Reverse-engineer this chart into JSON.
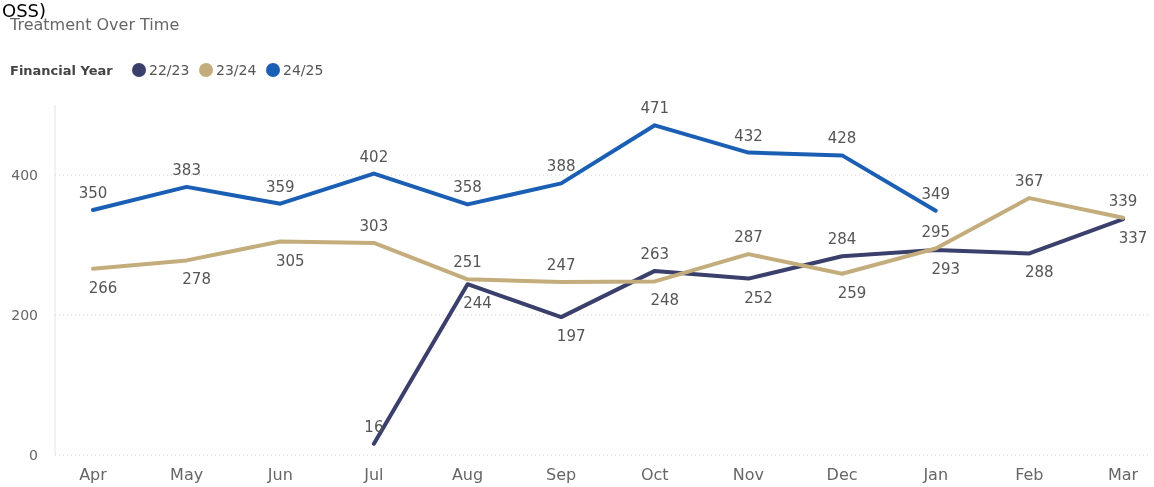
{
  "chart_data": {
    "type": "line",
    "title": "Treatment Over Time",
    "annotations": [
      "OSS)"
    ],
    "legend_title": "Financial Year",
    "categories": [
      "Apr",
      "May",
      "Jun",
      "Jul",
      "Aug",
      "Sep",
      "Oct",
      "Nov",
      "Dec",
      "Jan",
      "Feb",
      "Mar"
    ],
    "series": [
      {
        "name": "22/23",
        "color": "#3b3f6b",
        "values": [
          null,
          null,
          null,
          16,
          244,
          197,
          263,
          252,
          284,
          293,
          288,
          337
        ]
      },
      {
        "name": "23/24",
        "color": "#c4ad7c",
        "values": [
          266,
          278,
          305,
          303,
          251,
          247,
          248,
          287,
          259,
          295,
          367,
          339
        ]
      },
      {
        "name": "24/25",
        "color": "#1a5fb4",
        "values": [
          350,
          383,
          359,
          402,
          358,
          388,
          471,
          432,
          428,
          349,
          null,
          null
        ]
      }
    ],
    "ylim": [
      0,
      500
    ],
    "yticks": [
      0,
      200,
      400
    ],
    "grid": "y",
    "legend": "top left",
    "data_labels": true,
    "marker": "none",
    "line_style": "solid"
  }
}
